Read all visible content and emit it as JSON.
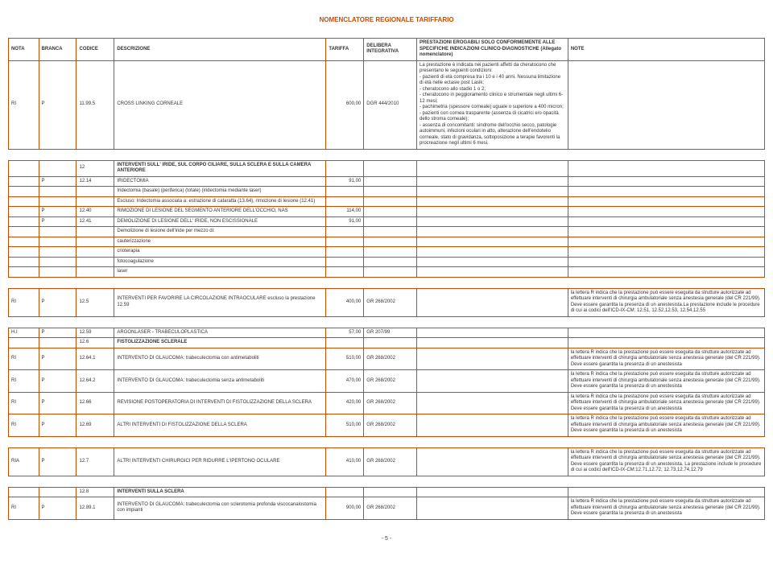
{
  "title": "NOMENCLATORE REGIONALE TARIFFARIO",
  "pageNumber": "- 5 -",
  "colors": {
    "accent": "#c94a00",
    "text": "#333333",
    "background": "#ffffff"
  },
  "headers": {
    "nota": "NOTA",
    "branca": "BRANCA",
    "codice": "CODICE",
    "descrizione": "DESCRIZIONE",
    "tariffa": "TARIFFA",
    "delibera": "DELIBERA INTEGRATIVA",
    "prestazioni": "PRESTAZIONI EROGABILI SOLO CONFORMEMENTE ALLE SPECIFICHE INDICAZIONI CLINICO-DIAGNOSTICHE (Allegato nomenclatore)",
    "note": "NOTE"
  },
  "rows": [
    {
      "nota": "RI",
      "branca": "P",
      "codice": "11.99.5",
      "descr": "CROSS LINKING CORNEALE",
      "tariffa": "600,00",
      "delib": "DGR 444/2010",
      "prest": "La prestazione è indicata nei pazienti affetti da cheratocono che presentano le seguenti condizioni:\n- pazienti di età compresa tra i 10 e i 40 anni. Nessuna limitazione di età nelle ectasie post Lasik;\n- cheratocono allo stadio 1 o 2;\n- cheratocono in peggioramento clinico e strumentale negli ultimi 6-12 mesi;\n- pachimetria (spessore corneale) uguale o superiore a 400 micron;\n- pazienti con cornea trasparente (assenza di cicatrici e/o opacità dello stroma corneale);\n- assenza di concomitanti: sindrome dell'occhio secco, patologie autoimmuni, infezioni oculari in atto, alterazione dell'endotelio corneale, stato di gravidanza, sottoposizione a terapie favorenti la procreazione negli ultimi 6 mesi.",
      "note": ""
    },
    {
      "type": "spacer"
    },
    {
      "nota": "",
      "branca": "",
      "codice": "12",
      "descr": "INTERVENTI SULL' IRIDE, SUL CORPO CILIARE, SULLA SCLERA E SULLA CAMERA ANTERIORE",
      "tariffa": "",
      "delib": "",
      "prest": "",
      "note": "",
      "bold": true
    },
    {
      "nota": "",
      "branca": "P",
      "codice": "12.14",
      "descr": "IRIDECTOMIA",
      "tariffa": "91,00",
      "delib": "",
      "prest": "",
      "note": ""
    },
    {
      "nota": "",
      "branca": "",
      "codice": "",
      "descr": "Iridectomia (basale) (periferica) (totale) (iridectomia mediante laser)",
      "tariffa": "",
      "delib": "",
      "prest": "",
      "note": ""
    },
    {
      "nota": "",
      "branca": "",
      "codice": "",
      "descr": "Escluso: Iridectomia associata a: estrazione di cataratta (13.64), rimozione di lesione (12.41)",
      "tariffa": "",
      "delib": "",
      "prest": "",
      "note": ""
    },
    {
      "nota": "",
      "branca": "P",
      "codice": "12.40",
      "descr": "RIMOZIONE DI LESIONE DEL SEGMENTO ANTERIORE DELL'OCCHIO, NAS",
      "tariffa": "114,00",
      "delib": "",
      "prest": "",
      "note": ""
    },
    {
      "nota": "",
      "branca": "P",
      "codice": "12.41",
      "descr": "DEMOLIZIONE DI LESIONE DELL' IRIDE, NON ESCISSIONALE",
      "tariffa": "91,00",
      "delib": "",
      "prest": "",
      "note": ""
    },
    {
      "nota": "",
      "branca": "",
      "codice": "",
      "descr": "Demolizione di lesione dell'iride per mezzo di:",
      "tariffa": "",
      "delib": "",
      "prest": "",
      "note": ""
    },
    {
      "nota": "",
      "branca": "",
      "codice": "",
      "descr": "cauterizzazione",
      "tariffa": "",
      "delib": "",
      "prest": "",
      "note": ""
    },
    {
      "nota": "",
      "branca": "",
      "codice": "",
      "descr": "crioterapia",
      "tariffa": "",
      "delib": "",
      "prest": "",
      "note": ""
    },
    {
      "nota": "",
      "branca": "",
      "codice": "",
      "descr": "fotocoagulazione",
      "tariffa": "",
      "delib": "",
      "prest": "",
      "note": ""
    },
    {
      "nota": "",
      "branca": "",
      "codice": "",
      "descr": "laser",
      "tariffa": "",
      "delib": "",
      "prest": "",
      "note": ""
    },
    {
      "type": "spacer"
    },
    {
      "nota": "RI",
      "branca": "P",
      "codice": "12.5",
      "descr": "INTERVENTI PER FAVORIRE LA CIRCOLAZIONE INTRAOCULARE escluso la prestazione 12.59",
      "tariffa": "400,00",
      "delib": "GR 268/2002",
      "prest": "",
      "note": "la lettera R indica che la prestazione può essere eseguita da strutture autorizzate ad effettuare interventi di chirurgia ambulatoriale senza anestesia generale (del CR 221/99). Deve essere garantita la presenza di un anestesista.La prestazione include le procedure di cui ai codici dell'ICD-IX-CM: 12.51, 12.52,12.53, 12.54,12.55"
    },
    {
      "type": "spacer"
    },
    {
      "nota": "H.I",
      "branca": "P",
      "codice": "12.59",
      "descr": "ARGONLASER - TRABECULOPLASTICA",
      "tariffa": "57,00",
      "delib": "GR 207/99",
      "prest": "",
      "note": ""
    },
    {
      "nota": "",
      "branca": "",
      "codice": "12.6",
      "descr": "FISTOLIZZAZIONE SCLERALE",
      "tariffa": "",
      "delib": "",
      "prest": "",
      "note": "",
      "bold": true
    },
    {
      "nota": "RI",
      "branca": "P",
      "codice": "12.64.1",
      "descr": "INTERVENTO DI GLAUCOMA: trabeculectomia con antimetaboliti",
      "tariffa": "510,00",
      "delib": "GR 268/2002",
      "prest": "",
      "note": "la lettera R indica che la prestazione può essere eseguita da strutture autorizzate ad effettuare interventi di chirurgia ambulatoriale senza anestesia generale (del CR 221/99). Deve essere garantita la presenza di un anestesista"
    },
    {
      "nota": "RI",
      "branca": "P",
      "codice": "12.64.2",
      "descr": "INTERVENTO DI GLAUCOMA: trabeculectomia senza antimetaboliti",
      "tariffa": "470,00",
      "delib": "GR 268/2002",
      "prest": "",
      "note": "la lettera R indica che la prestazione può essere eseguita da strutture autorizzate ad effettuare interventi di chirurgia ambulatoriale senza anestesia generale (del CR 221/99). Deve essere garantita la presenza di un anestesista"
    },
    {
      "nota": "RI",
      "branca": "P",
      "codice": "12.66",
      "descr": "REVISIONE POSTOPERATORIA DI INTERVENTI DI FISTOLIZZAZIONE DELLA SCLERA",
      "tariffa": "420,00",
      "delib": "GR 268/2002",
      "prest": "",
      "note": "la lettera R indica che la prestazione può essere eseguita da strutture autorizzate ad effettuare interventi di chirurgia ambulatoriale senza anestesia generale (del CR 221/99). Deve essere garantita la presenza di un anestesista"
    },
    {
      "nota": "RI",
      "branca": "P",
      "codice": "12.69",
      "descr": "ALTRI INTERVENTI DI FISTOLIZZAZIONE DELLA SCLERA",
      "tariffa": "510,00",
      "delib": "GR 268/2002",
      "prest": "",
      "note": "la lettera R indica che la prestazione può essere eseguita da strutture autorizzate ad effettuare interventi di chirurgia ambulatoriale senza anestesia generale (del CR 221/99). Deve essere garantita la presenza di un anestesista"
    },
    {
      "type": "spacer"
    },
    {
      "nota": "RIA",
      "branca": "P",
      "codice": "12.7",
      "descr": "ALTRI INTERVENTI CHIRURGICI PER RIDURRE L'IPERTONO OCULARE",
      "tariffa": "410,00",
      "delib": "GR 268/2002",
      "prest": "",
      "note": "la lettera R indica che la prestazione può essere eseguita da strutture autorizzate ad effettuare interventi di chirurgia ambulatoriale senza anestesia generale (del CR 221/99). Deve essere garantita la presenza di un anestesista.      La prestazione include le procedure di cui ai codici dell'ICD-IX-CM:12.71,12.72, 12.73,12.74,12.79"
    },
    {
      "type": "spacer"
    },
    {
      "nota": "",
      "branca": "",
      "codice": "12.8",
      "descr": "INTERVENTI SULLA SCLERA",
      "tariffa": "",
      "delib": "",
      "prest": "",
      "note": "",
      "bold": true
    },
    {
      "nota": "RI",
      "branca": "P",
      "codice": "12.89.1",
      "descr": "INTERVENTO DI GLAUCOMA: trabeculectomia con sclerotomia profonda viscocanalostomia con impianti",
      "tariffa": "900,00",
      "delib": "GR 268/2002",
      "prest": "",
      "note": "la lettera R indica che la prestazione può essere eseguita da strutture autorizzate ad effettuare interventi di chirurgia ambulatoriale senza anestesia generale (del CR 221/99). Deve essere garantita la presenza di un anestesista"
    }
  ]
}
